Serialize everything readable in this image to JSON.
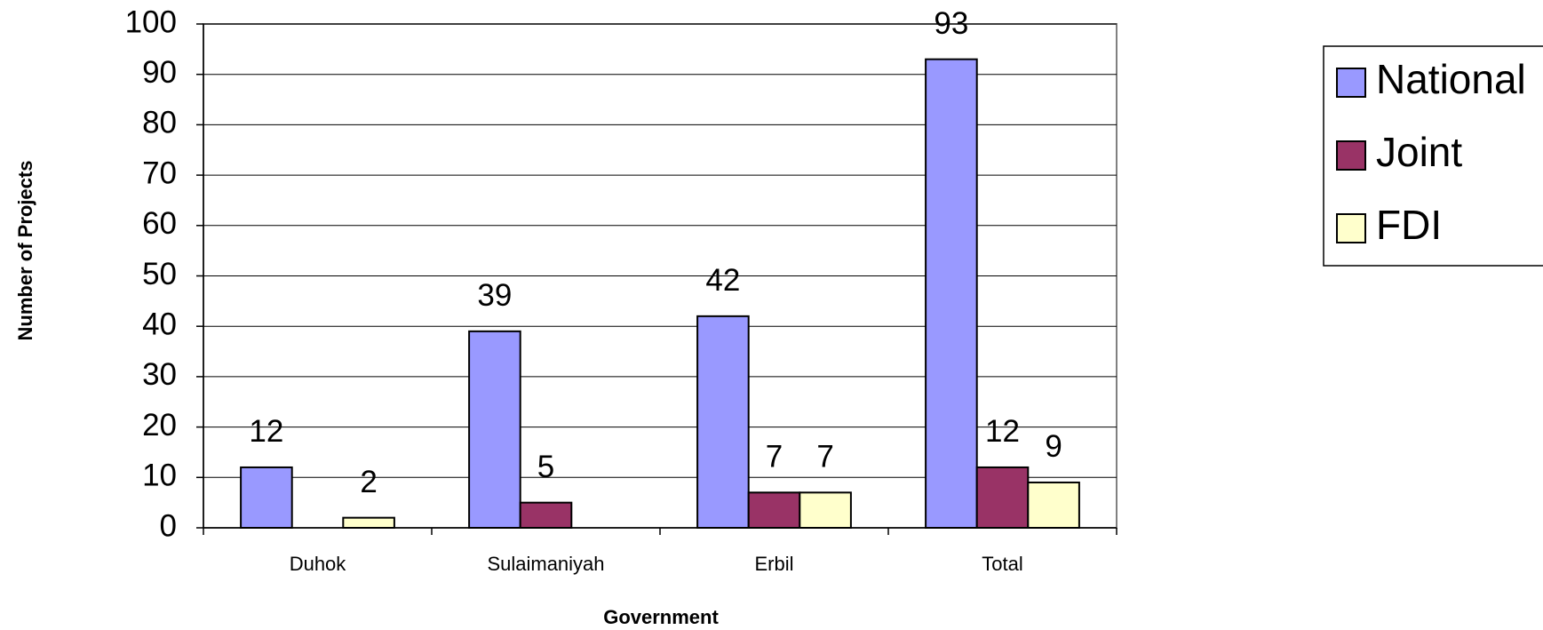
{
  "chart_data": {
    "type": "bar",
    "x_label": "Government",
    "y_label": "Number of Projects",
    "categories": [
      "Duhok",
      "Sulaimaniyah",
      "Erbil",
      "Total"
    ],
    "series": [
      {
        "name": "National",
        "color": "#9999ff",
        "values": [
          12,
          39,
          42,
          93
        ]
      },
      {
        "name": "Joint",
        "color": "#993366",
        "values": [
          null,
          5,
          7,
          12
        ]
      },
      {
        "name": "FDI",
        "color": "#ffffcc",
        "values": [
          2,
          null,
          7,
          9
        ]
      }
    ],
    "ylim": [
      0,
      100
    ],
    "yticks": [
      0,
      10,
      20,
      30,
      40,
      50,
      60,
      70,
      80,
      90,
      100
    ],
    "grid": true,
    "legend": "right"
  }
}
